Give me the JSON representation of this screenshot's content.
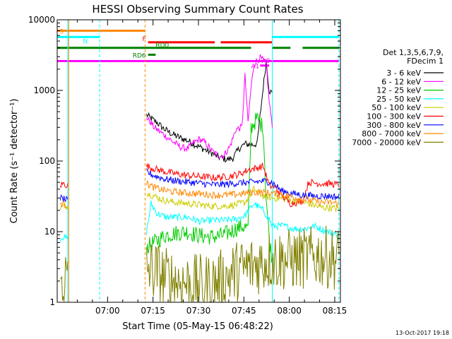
{
  "chart_data": {
    "type": "line",
    "title": "HESSI Observing Summary Count Rates",
    "xlabel": "Start Time (05-May-15 06:48:22)",
    "ylabel": "Count Rate (s⁻¹ detector⁻¹)",
    "yscale": "log",
    "ylim": [
      1,
      10000
    ],
    "xlim_minutes": [
      -5,
      88.5
    ],
    "x_tick_labels": [
      "07:00",
      "07:15",
      "07:30",
      "07:45",
      "08:00",
      "08:15"
    ],
    "x_tick_minutes": [
      11.63,
      26.63,
      41.63,
      56.63,
      71.63,
      86.63
    ],
    "y_tick_labels": [
      "1",
      "10",
      "100",
      "1000",
      "10000"
    ],
    "y_tick_values": [
      1,
      10,
      100,
      1000,
      10000
    ],
    "legend_header": [
      "Det 1,3,5,6,7,9,",
      "FDecim 1"
    ],
    "legend_position": "right",
    "timestamp": "13-Oct-2017 19:18",
    "series": [
      {
        "name": "3 - 6 keV",
        "color": "#000000",
        "start": 24.5,
        "end": 66,
        "points": [
          [
            24.5,
            450
          ],
          [
            26,
            400
          ],
          [
            28,
            350
          ],
          [
            30,
            290
          ],
          [
            33,
            240
          ],
          [
            36,
            210
          ],
          [
            38,
            195
          ],
          [
            40,
            175
          ],
          [
            43,
            150
          ],
          [
            46,
            130
          ],
          [
            48,
            115
          ],
          [
            51,
            105
          ],
          [
            53,
            110
          ],
          [
            55,
            150
          ],
          [
            57,
            175
          ],
          [
            59,
            170
          ],
          [
            61,
            175
          ],
          [
            63,
            1100
          ],
          [
            64,
            2600
          ],
          [
            65,
            1000
          ],
          [
            66,
            900
          ]
        ]
      },
      {
        "name": "6 - 12 keV",
        "color": "#ff00ff",
        "start": 24.5,
        "end": 66,
        "points": [
          [
            24.5,
            420
          ],
          [
            27,
            300
          ],
          [
            30,
            240
          ],
          [
            33,
            190
          ],
          [
            36,
            155
          ],
          [
            38,
            150
          ],
          [
            40,
            180
          ],
          [
            42,
            205
          ],
          [
            44,
            180
          ],
          [
            46,
            140
          ],
          [
            48,
            120
          ],
          [
            50,
            120
          ],
          [
            52,
            160
          ],
          [
            54,
            280
          ],
          [
            56,
            300
          ],
          [
            57,
            1600
          ],
          [
            58,
            350
          ],
          [
            59,
            1100
          ],
          [
            60,
            2400
          ],
          [
            62,
            2900
          ],
          [
            64,
            2400
          ],
          [
            65,
            700
          ],
          [
            66,
            300
          ]
        ]
      },
      {
        "name": "12 - 25 keV",
        "color": "#00cc00",
        "start": 24.5,
        "end": 66,
        "points": [
          [
            24.5,
            6
          ],
          [
            27,
            7
          ],
          [
            31,
            9
          ],
          [
            34,
            9.5
          ],
          [
            38,
            10
          ],
          [
            41,
            9
          ],
          [
            44,
            8.5
          ],
          [
            47,
            8.5
          ],
          [
            50,
            9
          ],
          [
            54,
            11
          ],
          [
            56,
            12
          ],
          [
            58,
            11
          ],
          [
            59,
            300
          ],
          [
            61,
            400
          ],
          [
            63,
            300
          ],
          [
            64,
            30
          ],
          [
            65,
            8
          ],
          [
            66,
            4
          ]
        ]
      },
      {
        "name": "25 - 50 keV",
        "color": "#00ffff",
        "start": -4,
        "end": 88,
        "points": [
          [
            -4,
            8
          ],
          [
            -3,
            8.5
          ],
          [
            -2,
            8
          ],
          [
            -1.5,
            8
          ],
          [
            24.5,
            10
          ],
          [
            26,
            25
          ],
          [
            28,
            18
          ],
          [
            31,
            16
          ],
          [
            34,
            16
          ],
          [
            38,
            16
          ],
          [
            42,
            14
          ],
          [
            46,
            14.5
          ],
          [
            50,
            14.5
          ],
          [
            54,
            15
          ],
          [
            57,
            17
          ],
          [
            60,
            25
          ],
          [
            63,
            20
          ],
          [
            65,
            15
          ],
          [
            66,
            12
          ],
          [
            70,
            12
          ],
          [
            73,
            11
          ],
          [
            77,
            11
          ],
          [
            80,
            12
          ],
          [
            84,
            10
          ],
          [
            88,
            9
          ]
        ]
      },
      {
        "name": "50 - 100 keV",
        "color": "#cccc00",
        "start": -4,
        "end": 88,
        "points": [
          [
            -4,
            22
          ],
          [
            -1.5,
            23
          ],
          [
            24.5,
            35
          ],
          [
            27,
            32
          ],
          [
            30,
            28
          ],
          [
            34,
            26
          ],
          [
            38,
            25
          ],
          [
            42,
            24
          ],
          [
            46,
            23
          ],
          [
            50,
            23
          ],
          [
            54,
            24
          ],
          [
            57,
            26
          ],
          [
            60,
            40
          ],
          [
            63,
            32
          ],
          [
            66,
            30
          ],
          [
            70,
            29
          ],
          [
            74,
            27
          ],
          [
            78,
            25
          ],
          [
            82,
            22
          ],
          [
            84,
            22
          ],
          [
            88,
            21
          ]
        ]
      },
      {
        "name": "100 - 300 keV",
        "color": "#ff0000",
        "start": -4,
        "end": 88,
        "points": [
          [
            -4,
            45
          ],
          [
            -3,
            48
          ],
          [
            -2,
            46
          ],
          [
            -1.5,
            45
          ],
          [
            24.5,
            85
          ],
          [
            27,
            78
          ],
          [
            31,
            70
          ],
          [
            35,
            65
          ],
          [
            39,
            62
          ],
          [
            43,
            60
          ],
          [
            47,
            58
          ],
          [
            51,
            60
          ],
          [
            55,
            65
          ],
          [
            58,
            75
          ],
          [
            61,
            80
          ],
          [
            63,
            85
          ],
          [
            65,
            45
          ],
          [
            67,
            42
          ],
          [
            70,
            30
          ],
          [
            72,
            25
          ],
          [
            76,
            27
          ],
          [
            78,
            50
          ],
          [
            82,
            48
          ],
          [
            85,
            48
          ],
          [
            88,
            46
          ]
        ]
      },
      {
        "name": "300 - 800 keV",
        "color": "#0000ff",
        "start": -4,
        "end": 88,
        "points": [
          [
            -4,
            30
          ],
          [
            -2,
            28
          ],
          [
            -1.5,
            27
          ],
          [
            24.5,
            70
          ],
          [
            27,
            62
          ],
          [
            31,
            55
          ],
          [
            35,
            52
          ],
          [
            39,
            50
          ],
          [
            43,
            48
          ],
          [
            47,
            46
          ],
          [
            51,
            47
          ],
          [
            55,
            49
          ],
          [
            59,
            50
          ],
          [
            63,
            52
          ],
          [
            66,
            50
          ],
          [
            69,
            38
          ],
          [
            72,
            35
          ],
          [
            76,
            33
          ],
          [
            80,
            32
          ],
          [
            84,
            32
          ],
          [
            88,
            31
          ]
        ]
      },
      {
        "name": "800 - 7000 keV",
        "color": "#ff8800",
        "start": -4,
        "end": 88,
        "points": [
          [
            -4,
            25
          ],
          [
            -2,
            24
          ],
          [
            -1.5,
            23
          ],
          [
            24.5,
            48
          ],
          [
            27,
            42
          ],
          [
            31,
            38
          ],
          [
            35,
            36
          ],
          [
            39,
            35
          ],
          [
            43,
            34
          ],
          [
            47,
            33
          ],
          [
            51,
            33
          ],
          [
            55,
            34
          ],
          [
            59,
            36
          ],
          [
            63,
            36
          ],
          [
            66,
            35
          ],
          [
            70,
            33
          ],
          [
            74,
            30
          ],
          [
            78,
            28
          ],
          [
            82,
            26
          ],
          [
            85,
            26
          ],
          [
            88,
            25
          ]
        ]
      },
      {
        "name": "7000 - 20000 keV",
        "color": "#808000",
        "start": -4,
        "end": 88,
        "points": [
          [
            -4,
            2
          ],
          [
            -2,
            2.2
          ],
          [
            -1.5,
            2
          ],
          [
            24.5,
            3
          ],
          [
            28,
            2.7
          ],
          [
            31,
            2.2
          ],
          [
            35,
            2
          ],
          [
            39,
            1.8
          ],
          [
            43,
            1.7
          ],
          [
            47,
            1.9
          ],
          [
            50,
            2.1
          ],
          [
            53,
            2.6
          ],
          [
            57,
            3
          ],
          [
            61,
            3.5
          ],
          [
            65,
            4
          ],
          [
            69,
            4
          ],
          [
            73,
            4
          ],
          [
            77,
            4.2
          ],
          [
            81,
            4.5
          ],
          [
            84,
            4.3
          ],
          [
            88,
            4.2
          ]
        ]
      }
    ],
    "attenuator_bars": [
      {
        "label": "S",
        "color": "#ff8800",
        "level": 7000,
        "segments": [
          [
            -5,
            24
          ]
        ]
      },
      {
        "label": "N",
        "color": "#00ffff",
        "level": 5700,
        "segments": [
          [
            -5,
            9
          ],
          [
            66,
            88
          ]
        ]
      },
      {
        "label": "F",
        "color": "#ff0000",
        "level": 4800,
        "segments": [
          [
            25,
            47
          ],
          [
            49,
            66
          ]
        ]
      },
      {
        "label": "RD0",
        "color": "#008000",
        "level": 4000,
        "segments": [
          [
            -5,
            59
          ],
          [
            66,
            72
          ],
          [
            76,
            88
          ]
        ]
      },
      {
        "label": "RD6",
        "color": "#008000",
        "level": 3200,
        "segments": [
          [
            25,
            27.5
          ]
        ]
      },
      {
        "label": "A1",
        "color": "#ff00ff",
        "level": 2600,
        "segments": [
          [
            -5,
            88
          ]
        ]
      },
      {
        "label": "A0",
        "color": "#ff00ff",
        "level": 2250,
        "segments": [
          [
            62,
            65
          ]
        ]
      }
    ],
    "vertical_markers": [
      {
        "color": "#00ffff",
        "dashed": false,
        "x": -1.5
      },
      {
        "color": "#ff8800",
        "dashed": false,
        "x": -1.2
      },
      {
        "color": "#00ffff",
        "dashed": true,
        "x": 9
      },
      {
        "color": "#ff8800",
        "dashed": true,
        "x": 24
      },
      {
        "color": "#00ffff",
        "dashed": false,
        "x": 66
      },
      {
        "color": "#00ffff",
        "dashed": true,
        "x": 88
      }
    ]
  }
}
